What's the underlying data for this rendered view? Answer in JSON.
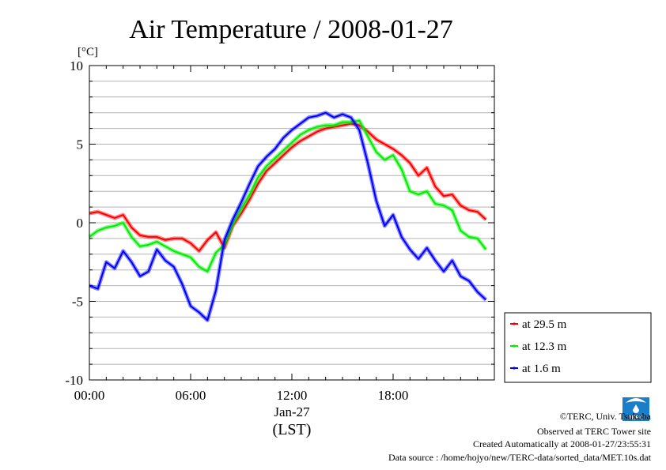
{
  "chart_data": {
    "type": "line",
    "title": "Air Temperature / 2008-01-27",
    "ylabel": "[°C]",
    "xlabel": "(LST)",
    "date_label": "Jan-27",
    "ylim": [
      -10,
      10
    ],
    "xlim": [
      0,
      24
    ],
    "y_ticks": [
      "10",
      "5",
      "0",
      "-5",
      "-10"
    ],
    "x_ticks": [
      "00:00",
      "06:00",
      "12:00",
      "18:00"
    ],
    "grid": true,
    "legend_position": "bottom-right outside",
    "x": [
      0,
      0.5,
      1,
      1.5,
      2,
      2.5,
      3,
      3.5,
      4,
      4.5,
      5,
      5.5,
      6,
      6.5,
      7,
      7.5,
      8,
      8.5,
      9,
      9.5,
      10,
      10.5,
      11,
      11.5,
      12,
      12.5,
      13,
      13.5,
      14,
      14.5,
      15,
      15.5,
      16,
      16.5,
      17,
      17.5,
      18,
      18.5,
      19,
      19.5,
      20,
      20.5,
      21,
      21.5,
      22,
      22.5,
      23,
      23.5
    ],
    "series": [
      {
        "name": "at 29.5 m",
        "color": "#ff0000",
        "values": [
          0.6,
          0.7,
          0.5,
          0.3,
          0.5,
          -0.3,
          -0.8,
          -0.9,
          -0.9,
          -1.1,
          -1.0,
          -1.0,
          -1.3,
          -1.8,
          -1.1,
          -0.6,
          -1.6,
          -0.2,
          0.6,
          1.5,
          2.5,
          3.3,
          3.8,
          4.3,
          4.8,
          5.2,
          5.5,
          5.8,
          6.0,
          6.1,
          6.2,
          6.3,
          6.2,
          5.8,
          5.3,
          5.0,
          4.7,
          4.3,
          3.8,
          3.0,
          3.5,
          2.3,
          1.7,
          1.8,
          1.1,
          0.8,
          0.7,
          0.2
        ]
      },
      {
        "name": "at 12.3 m",
        "color": "#00ee00",
        "values": [
          -0.9,
          -0.5,
          -0.3,
          -0.2,
          0.0,
          -0.9,
          -1.5,
          -1.4,
          -1.2,
          -1.5,
          -1.8,
          -2.0,
          -2.2,
          -2.8,
          -3.1,
          -1.9,
          -1.4,
          -0.1,
          0.9,
          1.8,
          2.9,
          3.6,
          4.1,
          4.6,
          5.1,
          5.6,
          5.9,
          6.1,
          6.2,
          6.2,
          6.4,
          6.4,
          6.5,
          5.5,
          4.5,
          4.0,
          4.3,
          3.4,
          2.0,
          1.8,
          2.0,
          1.2,
          1.1,
          0.8,
          -0.5,
          -0.9,
          -1.0,
          -1.7
        ]
      },
      {
        "name": "at 1.6 m",
        "color": "#0000ff",
        "values": [
          -4.0,
          -4.2,
          -2.5,
          -2.9,
          -1.8,
          -2.5,
          -3.4,
          -3.1,
          -1.7,
          -2.4,
          -2.8,
          -3.9,
          -5.3,
          -5.7,
          -6.2,
          -4.3,
          -1.1,
          0.2,
          1.3,
          2.5,
          3.6,
          4.2,
          4.7,
          5.4,
          5.9,
          6.3,
          6.7,
          6.8,
          7.0,
          6.7,
          6.9,
          6.7,
          5.9,
          3.8,
          1.4,
          -0.2,
          0.5,
          -0.9,
          -1.7,
          -2.3,
          -1.6,
          -2.4,
          -3.1,
          -2.4,
          -3.4,
          -3.7,
          -4.4,
          -4.9
        ]
      }
    ]
  },
  "credits": {
    "copyright": "©TERC, Univ. Tsukuba",
    "observed": "Observed at TERC Tower site",
    "created": "Created Automatically at 2008-01-27/23:55:31",
    "source": "Data source : /home/hojyo/new/TERC-data/sorted_data/MET.10s.dat",
    "logo_text": "TERC"
  }
}
